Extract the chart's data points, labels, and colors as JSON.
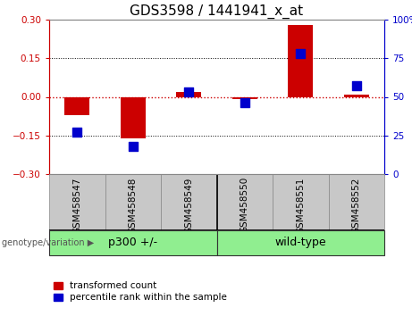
{
  "title": "GDS3598 / 1441941_x_at",
  "samples": [
    "GSM458547",
    "GSM458548",
    "GSM458549",
    "GSM458550",
    "GSM458551",
    "GSM458552"
  ],
  "red_values": [
    -0.07,
    -0.16,
    0.02,
    -0.01,
    0.28,
    0.01
  ],
  "blue_values": [
    27,
    18,
    53,
    46,
    78,
    57
  ],
  "ylim_left": [
    -0.3,
    0.3
  ],
  "ylim_right": [
    0,
    100
  ],
  "yticks_left": [
    -0.3,
    -0.15,
    0,
    0.15,
    0.3
  ],
  "yticks_right": [
    0,
    25,
    50,
    75,
    100
  ],
  "group_boundary": 2.5,
  "red_color": "#CC0000",
  "blue_color": "#0000CC",
  "bar_width": 0.45,
  "blue_marker_size": 45,
  "hline_color": "#CC0000",
  "grid_color": "#000000",
  "legend_red": "transformed count",
  "legend_blue": "percentile rank within the sample",
  "genotype_label": "genotype/variation",
  "bg_plot": "#FFFFFF",
  "bg_xtick": "#C8C8C8",
  "bg_group": "#90EE90",
  "title_fontsize": 11,
  "tick_fontsize": 7.5,
  "legend_fontsize": 7.5,
  "group_labels": [
    "p300 +/-",
    "wild-type"
  ],
  "group_label_fontsize": 9
}
